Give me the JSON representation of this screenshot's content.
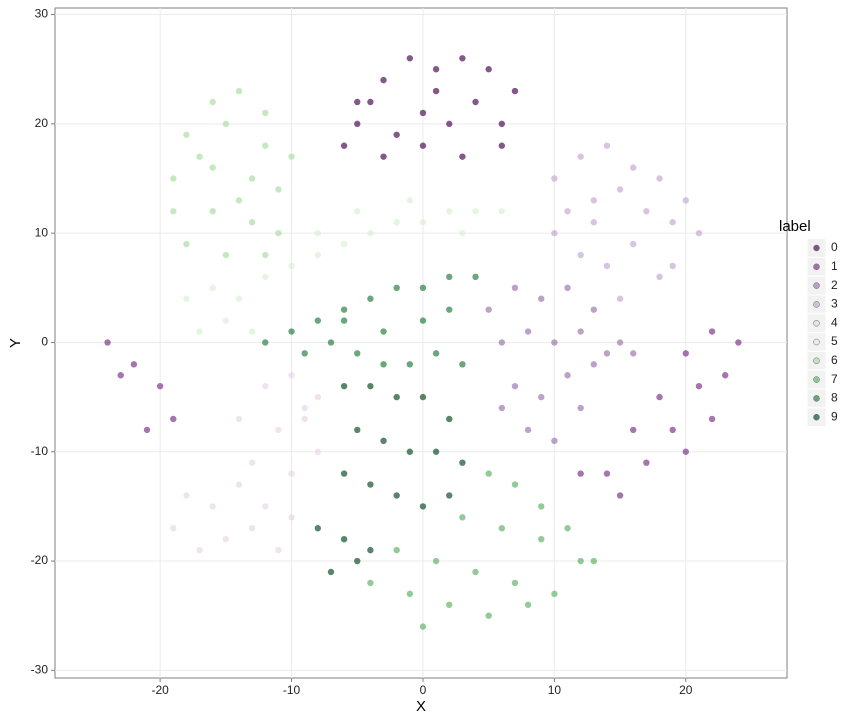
{
  "chart_data": {
    "type": "scatter",
    "x_label": "X",
    "y_label": "Y",
    "legend_title": "label",
    "xlim": [
      -28,
      27.7
    ],
    "ylim": [
      -30.7,
      30.6
    ],
    "xticks": [
      -20,
      -10,
      0,
      10,
      20
    ],
    "yticks": [
      -30,
      -20,
      -10,
      0,
      10,
      20,
      30
    ],
    "grid": true,
    "legend": "right",
    "series": [
      {
        "name": "0",
        "color": "#40004b",
        "x": [
          -5,
          -3,
          -1,
          1,
          3,
          5,
          7,
          -6,
          -4,
          -2,
          0,
          2,
          4,
          6,
          -3,
          0,
          3,
          6,
          -5,
          1
        ],
        "y": [
          20,
          24,
          26,
          25,
          26,
          25,
          23,
          18,
          22,
          19,
          21,
          20,
          22,
          20,
          17,
          18,
          17,
          18,
          22,
          23
        ]
      },
      {
        "name": "1",
        "color": "#762a83",
        "x": [
          20,
          22,
          24,
          18,
          21,
          23,
          16,
          19,
          22,
          14,
          17,
          20,
          12,
          15,
          -24,
          -22,
          -20,
          -19,
          -23,
          -21
        ],
        "y": [
          -1,
          1,
          0,
          -5,
          -4,
          -3,
          -8,
          -8,
          -7,
          -12,
          -11,
          -10,
          -12,
          -14,
          0,
          -2,
          -4,
          -7,
          -3,
          -8
        ]
      },
      {
        "name": "2",
        "color": "#9970ab",
        "x": [
          5,
          7,
          9,
          11,
          13,
          15,
          6,
          8,
          10,
          12,
          14,
          16,
          7,
          9,
          11,
          8,
          10,
          6,
          12,
          13
        ],
        "y": [
          3,
          5,
          4,
          5,
          3,
          0,
          0,
          1,
          0,
          1,
          -1,
          -1,
          -4,
          -5,
          -3,
          -8,
          -9,
          -6,
          -6,
          -2
        ]
      },
      {
        "name": "3",
        "color": "#c2a5cf",
        "x": [
          10,
          12,
          14,
          16,
          18,
          20,
          11,
          13,
          15,
          17,
          19,
          21,
          12,
          14,
          16,
          18,
          10,
          15,
          19,
          13
        ],
        "y": [
          15,
          17,
          18,
          16,
          15,
          13,
          12,
          13,
          14,
          12,
          11,
          10,
          8,
          7,
          9,
          6,
          10,
          4,
          7,
          11
        ]
      },
      {
        "name": "4",
        "color": "#e7d4e8",
        "x": [
          -12,
          -10,
          -8,
          -14,
          -11,
          -9,
          -13,
          -10,
          -8,
          -18,
          -16,
          -14,
          -12,
          -10,
          -19,
          -15,
          -11,
          -17,
          -13,
          -9
        ],
        "y": [
          -4,
          -3,
          -5,
          -7,
          -8,
          -7,
          -11,
          -12,
          -10,
          -14,
          -15,
          -13,
          -15,
          -16,
          -17,
          -18,
          -19,
          -19,
          -17,
          -6
        ]
      },
      {
        "name": "5",
        "color": "#d9f0d3",
        "x": [
          -18,
          -16,
          -14,
          -12,
          -17,
          -15,
          -13,
          -10,
          -8,
          -6,
          -4,
          -2,
          0,
          2,
          4,
          6,
          -8,
          -5,
          -1,
          3
        ],
        "y": [
          4,
          5,
          4,
          6,
          1,
          2,
          1,
          7,
          8,
          9,
          10,
          11,
          11,
          12,
          12,
          12,
          10,
          12,
          13,
          10
        ]
      },
      {
        "name": "6",
        "color": "#a6dba0",
        "x": [
          -16,
          -14,
          -12,
          -18,
          -15,
          -12,
          -10,
          -19,
          -16,
          -13,
          -11,
          -19,
          -16,
          -13,
          -11,
          -18,
          -15,
          -12,
          -14,
          -17
        ],
        "y": [
          22,
          23,
          21,
          19,
          20,
          18,
          17,
          15,
          16,
          15,
          14,
          12,
          12,
          11,
          10,
          9,
          8,
          8,
          13,
          17
        ]
      },
      {
        "name": "7",
        "color": "#5aae61",
        "x": [
          5,
          7,
          9,
          11,
          13,
          3,
          6,
          9,
          12,
          -2,
          1,
          4,
          7,
          10,
          -4,
          -1,
          2,
          5,
          8,
          0
        ],
        "y": [
          -12,
          -13,
          -15,
          -17,
          -20,
          -16,
          -17,
          -18,
          -20,
          -19,
          -20,
          -21,
          -22,
          -23,
          -22,
          -23,
          -24,
          -25,
          -24,
          -26
        ]
      },
      {
        "name": "8",
        "color": "#1b7837",
        "x": [
          -12,
          -10,
          -8,
          -6,
          -4,
          -2,
          0,
          2,
          4,
          -9,
          -7,
          -5,
          -3,
          -1,
          1,
          3,
          -6,
          -3,
          0,
          2
        ],
        "y": [
          0,
          1,
          2,
          3,
          4,
          5,
          5,
          6,
          6,
          -1,
          0,
          -1,
          -2,
          -2,
          -1,
          -2,
          2,
          1,
          2,
          3
        ]
      },
      {
        "name": "9",
        "color": "#00441b",
        "x": [
          -6,
          -4,
          -2,
          0,
          2,
          -5,
          -3,
          -1,
          1,
          3,
          -6,
          -4,
          -2,
          0,
          2,
          -8,
          -6,
          -4,
          -7,
          -5
        ],
        "y": [
          -4,
          -4,
          -5,
          -5,
          -7,
          -8,
          -9,
          -10,
          -10,
          -11,
          -12,
          -13,
          -14,
          -15,
          -14,
          -17,
          -18,
          -19,
          -21,
          -20
        ]
      }
    ]
  }
}
